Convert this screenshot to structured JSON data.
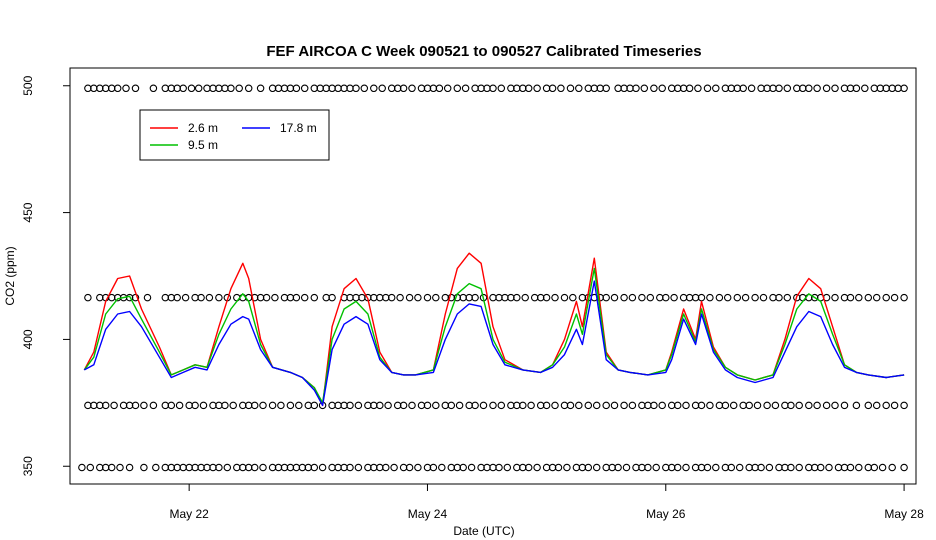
{
  "chart_data": {
    "type": "line",
    "title": "FEF AIRCOA C  Week 090521 to 090527  Calibrated Timeseries",
    "xlabel": "Date (UTC)",
    "ylabel": "CO2 (ppm)",
    "x_unit": "day of May 2009",
    "xlim": [
      21.0,
      28.1
    ],
    "ylim": [
      343,
      507
    ],
    "x_ticks": [
      {
        "value": 22,
        "label": "May 22"
      },
      {
        "value": 24,
        "label": "May 24"
      },
      {
        "value": 26,
        "label": "May 26"
      },
      {
        "value": 28,
        "label": "May 28"
      }
    ],
    "y_ticks": [
      {
        "value": 350,
        "label": "350"
      },
      {
        "value": 400,
        "label": "400"
      },
      {
        "value": 450,
        "label": "450"
      },
      {
        "value": 500,
        "label": "500"
      }
    ],
    "grid": false,
    "legend_position": "top-left",
    "series": [
      {
        "name": "2.6 m",
        "color": "#ff0000",
        "x": [
          21.12,
          21.2,
          21.3,
          21.4,
          21.5,
          21.6,
          21.75,
          21.85,
          21.95,
          22.05,
          22.15,
          22.25,
          22.35,
          22.45,
          22.5,
          22.6,
          22.7,
          22.85,
          22.95,
          23.05,
          23.12,
          23.2,
          23.3,
          23.4,
          23.5,
          23.6,
          23.7,
          23.8,
          23.9,
          24.05,
          24.15,
          24.25,
          24.35,
          24.45,
          24.55,
          24.65,
          24.8,
          24.95,
          25.05,
          25.15,
          25.25,
          25.3,
          25.4,
          25.5,
          25.6,
          25.7,
          25.85,
          26.0,
          26.05,
          26.15,
          26.25,
          26.3,
          26.4,
          26.5,
          26.6,
          26.75,
          26.9,
          27.0,
          27.1,
          27.2,
          27.3,
          27.4,
          27.5,
          27.6,
          27.7,
          27.85,
          28.0
        ],
        "y": [
          388,
          395,
          415,
          424,
          425,
          412,
          397,
          386,
          388,
          390,
          389,
          405,
          420,
          430,
          424,
          400,
          389,
          387,
          385,
          381,
          374,
          405,
          420,
          424,
          416,
          395,
          387,
          386,
          386,
          388,
          410,
          428,
          434,
          430,
          405,
          392,
          388,
          387,
          390,
          400,
          415,
          405,
          432,
          395,
          388,
          387,
          386,
          388,
          395,
          412,
          400,
          415,
          397,
          389,
          386,
          384,
          386,
          400,
          417,
          424,
          420,
          405,
          390,
          387,
          386,
          385,
          386
        ]
      },
      {
        "name": "9.5 m",
        "color": "#00c000",
        "x": [
          21.12,
          21.2,
          21.3,
          21.4,
          21.5,
          21.6,
          21.75,
          21.85,
          21.95,
          22.05,
          22.15,
          22.25,
          22.35,
          22.45,
          22.5,
          22.6,
          22.7,
          22.85,
          22.95,
          23.05,
          23.12,
          23.2,
          23.3,
          23.4,
          23.5,
          23.6,
          23.7,
          23.8,
          23.9,
          24.05,
          24.15,
          24.25,
          24.35,
          24.45,
          24.55,
          24.65,
          24.8,
          24.95,
          25.05,
          25.15,
          25.25,
          25.3,
          25.4,
          25.5,
          25.6,
          25.7,
          25.85,
          26.0,
          26.05,
          26.15,
          26.25,
          26.3,
          26.4,
          26.5,
          26.6,
          26.75,
          26.9,
          27.0,
          27.1,
          27.2,
          27.3,
          27.4,
          27.5,
          27.6,
          27.7,
          27.85,
          28.0
        ],
        "y": [
          388,
          393,
          410,
          416,
          417,
          408,
          395,
          386,
          388,
          390,
          389,
          402,
          412,
          418,
          415,
          398,
          389,
          387,
          385,
          381,
          375,
          400,
          412,
          415,
          410,
          393,
          387,
          386,
          386,
          388,
          405,
          418,
          422,
          420,
          400,
          391,
          388,
          387,
          390,
          397,
          410,
          402,
          428,
          394,
          388,
          387,
          386,
          388,
          394,
          410,
          399,
          412,
          396,
          389,
          386,
          384,
          386,
          398,
          412,
          418,
          415,
          402,
          390,
          387,
          386,
          385,
          386
        ]
      },
      {
        "name": "17.8 m",
        "color": "#0000ff",
        "x": [
          21.12,
          21.2,
          21.3,
          21.4,
          21.5,
          21.6,
          21.75,
          21.85,
          21.95,
          22.05,
          22.15,
          22.25,
          22.35,
          22.45,
          22.5,
          22.6,
          22.7,
          22.85,
          22.95,
          23.05,
          23.12,
          23.2,
          23.3,
          23.4,
          23.5,
          23.6,
          23.7,
          23.8,
          23.9,
          24.05,
          24.15,
          24.25,
          24.35,
          24.45,
          24.55,
          24.65,
          24.8,
          24.95,
          25.05,
          25.15,
          25.25,
          25.3,
          25.4,
          25.5,
          25.6,
          25.7,
          25.85,
          26.0,
          26.05,
          26.15,
          26.25,
          26.3,
          26.4,
          26.5,
          26.6,
          26.75,
          26.9,
          27.0,
          27.1,
          27.2,
          27.3,
          27.4,
          27.5,
          27.6,
          27.7,
          27.85,
          28.0
        ],
        "y": [
          388,
          390,
          404,
          410,
          411,
          405,
          393,
          385,
          387,
          389,
          388,
          398,
          406,
          409,
          408,
          396,
          389,
          387,
          385,
          380,
          374,
          396,
          406,
          409,
          406,
          392,
          387,
          386,
          386,
          387,
          400,
          410,
          414,
          413,
          398,
          390,
          388,
          387,
          389,
          394,
          404,
          398,
          423,
          392,
          388,
          387,
          386,
          387,
          392,
          408,
          398,
          410,
          395,
          388,
          385,
          383,
          385,
          395,
          405,
          411,
          409,
          398,
          389,
          387,
          386,
          385,
          386
        ]
      }
    ],
    "flag_rows": [
      {
        "y": 499,
        "x": [
          21.15,
          21.2,
          21.25,
          21.3,
          21.35,
          21.4,
          21.47,
          21.55,
          21.7,
          21.8,
          21.85,
          21.9,
          21.95,
          22.02,
          22.08,
          22.15,
          22.2,
          22.25,
          22.3,
          22.35,
          22.42,
          22.5,
          22.6,
          22.7,
          22.75,
          22.8,
          22.85,
          22.9,
          22.97,
          23.05,
          23.1,
          23.15,
          23.2,
          23.25,
          23.3,
          23.35,
          23.4,
          23.47,
          23.55,
          23.62,
          23.7,
          23.75,
          23.8,
          23.87,
          23.95,
          24.0,
          24.05,
          24.1,
          24.17,
          24.25,
          24.32,
          24.4,
          24.45,
          24.5,
          24.55,
          24.62,
          24.7,
          24.75,
          24.8,
          24.85,
          24.92,
          25.0,
          25.05,
          25.12,
          25.2,
          25.27,
          25.35,
          25.4,
          25.45,
          25.5,
          25.6,
          25.65,
          25.7,
          25.75,
          25.82,
          25.9,
          25.97,
          26.05,
          26.1,
          26.15,
          26.2,
          26.27,
          26.35,
          26.42,
          26.5,
          26.55,
          26.6,
          26.65,
          26.72,
          26.8,
          26.85,
          26.9,
          26.95,
          27.02,
          27.1,
          27.15,
          27.2,
          27.27,
          27.35,
          27.42,
          27.5,
          27.55,
          27.6,
          27.67,
          27.75,
          27.8,
          27.85,
          27.9,
          27.95,
          28.0
        ]
      },
      {
        "y": 416.5,
        "x": [
          21.15,
          21.25,
          21.3,
          21.35,
          21.4,
          21.45,
          21.5,
          21.55,
          21.65,
          21.8,
          21.85,
          21.9,
          21.97,
          22.05,
          22.1,
          22.17,
          22.25,
          22.32,
          22.4,
          22.45,
          22.5,
          22.55,
          22.6,
          22.65,
          22.72,
          22.8,
          22.85,
          22.9,
          22.97,
          23.05,
          23.15,
          23.2,
          23.3,
          23.35,
          23.4,
          23.45,
          23.5,
          23.55,
          23.6,
          23.65,
          23.7,
          23.77,
          23.85,
          23.92,
          24.0,
          24.07,
          24.15,
          24.2,
          24.25,
          24.3,
          24.35,
          24.4,
          24.47,
          24.55,
          24.6,
          24.65,
          24.7,
          24.75,
          24.82,
          24.9,
          24.95,
          25.0,
          25.07,
          25.15,
          25.22,
          25.3,
          25.35,
          25.4,
          25.45,
          25.5,
          25.57,
          25.65,
          25.72,
          25.8,
          25.87,
          25.95,
          26.0,
          26.07,
          26.15,
          26.2,
          26.25,
          26.3,
          26.37,
          26.45,
          26.52,
          26.6,
          26.67,
          26.75,
          26.82,
          26.9,
          26.95,
          27.02,
          27.1,
          27.15,
          27.2,
          27.25,
          27.3,
          27.35,
          27.42,
          27.5,
          27.55,
          27.62,
          27.7,
          27.77,
          27.85,
          27.92,
          28.0
        ]
      },
      {
        "y": 374,
        "x": [
          21.15,
          21.2,
          21.25,
          21.3,
          21.37,
          21.45,
          21.5,
          21.55,
          21.62,
          21.7,
          21.8,
          21.85,
          21.92,
          22.0,
          22.05,
          22.12,
          22.2,
          22.25,
          22.3,
          22.37,
          22.45,
          22.5,
          22.55,
          22.62,
          22.7,
          22.77,
          22.85,
          22.92,
          23.0,
          23.05,
          23.12,
          23.2,
          23.25,
          23.3,
          23.35,
          23.42,
          23.5,
          23.55,
          23.6,
          23.67,
          23.75,
          23.8,
          23.87,
          23.95,
          24.0,
          24.07,
          24.15,
          24.2,
          24.27,
          24.35,
          24.4,
          24.47,
          24.55,
          24.62,
          24.7,
          24.75,
          24.8,
          24.87,
          24.95,
          25.0,
          25.07,
          25.15,
          25.2,
          25.27,
          25.35,
          25.42,
          25.5,
          25.57,
          25.65,
          25.72,
          25.8,
          25.85,
          25.9,
          25.97,
          26.05,
          26.1,
          26.17,
          26.25,
          26.3,
          26.37,
          26.45,
          26.5,
          26.57,
          26.65,
          26.7,
          26.77,
          26.85,
          26.92,
          27.0,
          27.05,
          27.12,
          27.2,
          27.27,
          27.35,
          27.42,
          27.5,
          27.6,
          27.7,
          27.77,
          27.85,
          27.92,
          28.0
        ]
      },
      {
        "y": 349.5,
        "x": [
          21.1,
          21.17,
          21.25,
          21.3,
          21.35,
          21.42,
          21.5,
          21.62,
          21.72,
          21.8,
          21.85,
          21.9,
          21.95,
          22.0,
          22.05,
          22.1,
          22.15,
          22.2,
          22.25,
          22.32,
          22.4,
          22.45,
          22.5,
          22.55,
          22.62,
          22.7,
          22.75,
          22.8,
          22.85,
          22.9,
          22.95,
          23.0,
          23.05,
          23.12,
          23.2,
          23.25,
          23.3,
          23.35,
          23.42,
          23.5,
          23.55,
          23.6,
          23.65,
          23.72,
          23.8,
          23.85,
          23.92,
          24.0,
          24.05,
          24.12,
          24.2,
          24.25,
          24.3,
          24.37,
          24.45,
          24.5,
          24.55,
          24.6,
          24.67,
          24.75,
          24.8,
          24.85,
          24.92,
          25.0,
          25.05,
          25.1,
          25.17,
          25.25,
          25.3,
          25.35,
          25.42,
          25.5,
          25.55,
          25.6,
          25.67,
          25.75,
          25.8,
          25.85,
          25.92,
          26.0,
          26.05,
          26.1,
          26.17,
          26.25,
          26.3,
          26.35,
          26.42,
          26.5,
          26.55,
          26.62,
          26.7,
          26.75,
          26.8,
          26.87,
          26.95,
          27.0,
          27.05,
          27.12,
          27.2,
          27.25,
          27.3,
          27.37,
          27.45,
          27.5,
          27.55,
          27.62,
          27.7,
          27.75,
          27.82,
          27.9,
          28.0
        ]
      }
    ]
  }
}
